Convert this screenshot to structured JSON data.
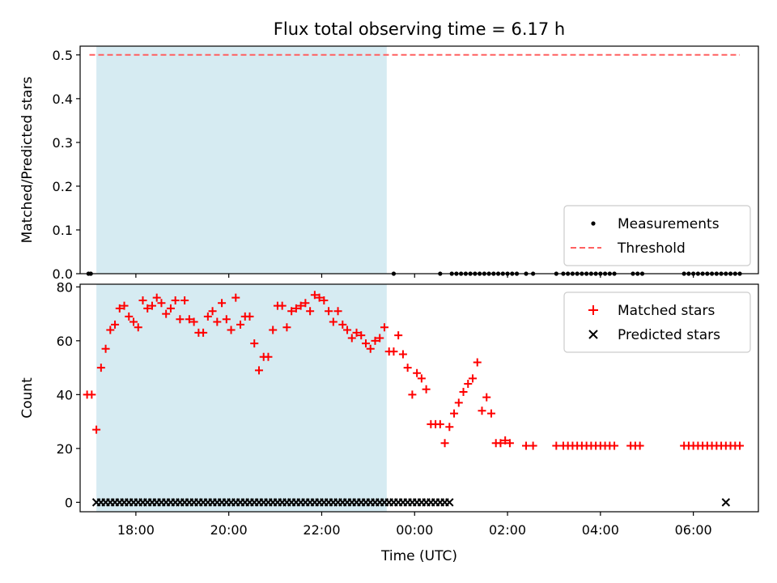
{
  "title": "Flux total observing time = 6.17 h",
  "colors": {
    "band": "#add8e6",
    "threshold": "#ff6060",
    "matched": "#ff0000",
    "predicted": "#000000",
    "measurement": "#000000"
  },
  "chart_data": [
    {
      "type": "scatter",
      "panel": "top",
      "ylabel": "Matched/Predicted stars",
      "xlabel": "",
      "xlim": [
        16.8,
        31.4
      ],
      "ylim": [
        0.0,
        0.52
      ],
      "yticks": [
        0.0,
        0.1,
        0.2,
        0.3,
        0.4,
        0.5
      ],
      "ytick_labels": [
        "0.0",
        "0.1",
        "0.2",
        "0.3",
        "0.4",
        "0.5"
      ],
      "shaded_interval": [
        17.15,
        23.4
      ],
      "threshold": {
        "label": "Threshold",
        "y": 0.5,
        "x": [
          17.0,
          31.0
        ]
      },
      "legend_position": "lower right",
      "series": [
        {
          "name": "Measurements",
          "marker": "dot",
          "x": [
            16.98,
            17.03,
            23.55,
            24.55,
            24.8,
            24.9,
            25.0,
            25.1,
            25.2,
            25.3,
            25.4,
            25.5,
            25.6,
            25.7,
            25.8,
            25.9,
            26.0,
            26.1,
            26.2,
            26.4,
            26.55,
            27.05,
            27.2,
            27.3,
            27.4,
            27.5,
            27.6,
            27.7,
            27.8,
            27.9,
            28.0,
            28.1,
            28.2,
            28.3,
            28.7,
            28.8,
            28.9,
            29.8,
            29.9,
            30.0,
            30.1,
            30.2,
            30.3,
            30.4,
            30.5,
            30.6,
            30.7,
            30.8,
            30.9,
            31.0
          ],
          "y": [
            0,
            0,
            0,
            0,
            0,
            0,
            0,
            0,
            0,
            0,
            0,
            0,
            0,
            0,
            0,
            0,
            0,
            0,
            0,
            0,
            0,
            0,
            0,
            0,
            0,
            0,
            0,
            0,
            0,
            0,
            0,
            0,
            0,
            0,
            0,
            0,
            0,
            0,
            0,
            0,
            0,
            0,
            0,
            0,
            0,
            0,
            0,
            0,
            0,
            0
          ]
        }
      ]
    },
    {
      "type": "scatter",
      "panel": "bottom",
      "ylabel": "Count",
      "xlabel": "Time (UTC)",
      "xlim": [
        16.8,
        31.4
      ],
      "ylim": [
        -3.5,
        81
      ],
      "xticks": [
        18,
        20,
        22,
        24,
        26,
        28,
        30
      ],
      "xtick_labels": [
        "18:00",
        "20:00",
        "22:00",
        "00:00",
        "02:00",
        "04:00",
        "06:00"
      ],
      "yticks": [
        0,
        20,
        40,
        60,
        80
      ],
      "ytick_labels": [
        "0",
        "20",
        "40",
        "60",
        "80"
      ],
      "shaded_interval": [
        17.15,
        23.4
      ],
      "legend_position": "upper right",
      "series": [
        {
          "name": "Matched stars",
          "marker": "plus",
          "x": [
            16.95,
            17.05,
            17.15,
            17.25,
            17.35,
            17.45,
            17.55,
            17.65,
            17.75,
            17.85,
            17.95,
            18.05,
            18.15,
            18.25,
            18.35,
            18.45,
            18.55,
            18.65,
            18.75,
            18.85,
            18.95,
            19.05,
            19.15,
            19.25,
            19.35,
            19.45,
            19.55,
            19.65,
            19.75,
            19.85,
            19.95,
            20.05,
            20.15,
            20.25,
            20.35,
            20.45,
            20.55,
            20.65,
            20.75,
            20.85,
            20.95,
            21.05,
            21.15,
            21.25,
            21.35,
            21.45,
            21.55,
            21.65,
            21.75,
            21.85,
            21.95,
            22.05,
            22.15,
            22.25,
            22.35,
            22.45,
            22.55,
            22.65,
            22.75,
            22.85,
            22.95,
            23.05,
            23.15,
            23.25,
            23.35,
            23.45,
            23.55,
            23.65,
            23.75,
            23.85,
            23.95,
            24.05,
            24.15,
            24.25,
            24.35,
            24.45,
            24.55,
            24.65,
            24.75,
            24.85,
            24.95,
            25.05,
            25.15,
            25.25,
            25.35,
            25.45,
            25.55,
            25.65,
            25.75,
            25.85,
            25.95,
            26.05,
            26.4,
            26.55,
            27.05,
            27.2,
            27.3,
            27.4,
            27.5,
            27.6,
            27.7,
            27.8,
            27.9,
            28.0,
            28.1,
            28.2,
            28.3,
            28.65,
            28.75,
            28.85,
            29.8,
            29.9,
            30.0,
            30.1,
            30.2,
            30.3,
            30.4,
            30.5,
            30.6,
            30.7,
            30.8,
            30.9,
            31.0
          ],
          "y": [
            40,
            40,
            27,
            50,
            57,
            64,
            66,
            72,
            73,
            69,
            67,
            65,
            75,
            72,
            73,
            76,
            74,
            70,
            72,
            75,
            68,
            75,
            68,
            67,
            63,
            63,
            69,
            71,
            67,
            74,
            68,
            64,
            76,
            66,
            69,
            69,
            59,
            49,
            54,
            54,
            64,
            73,
            73,
            65,
            71,
            72,
            73,
            74,
            71,
            77,
            76,
            75,
            71,
            67,
            71,
            66,
            64,
            61,
            63,
            62,
            59,
            57,
            60,
            61,
            65,
            56,
            56,
            62,
            55,
            50,
            40,
            48,
            46,
            42,
            29,
            29,
            29,
            22,
            28,
            33,
            37,
            41,
            44,
            46,
            52,
            34,
            39,
            33,
            22,
            22,
            23,
            22,
            21,
            21,
            21,
            21,
            21,
            21,
            21,
            21,
            21,
            21,
            21,
            21,
            21,
            21,
            21,
            21,
            21,
            21,
            21,
            21,
            21,
            21,
            21,
            21,
            21,
            21,
            21,
            21,
            21,
            21,
            21
          ]
        },
        {
          "name": "Predicted stars",
          "marker": "x",
          "x": [
            17.15,
            17.25,
            17.35,
            17.45,
            17.55,
            17.65,
            17.75,
            17.85,
            17.95,
            18.05,
            18.15,
            18.25,
            18.35,
            18.45,
            18.55,
            18.65,
            18.75,
            18.85,
            18.95,
            19.05,
            19.15,
            19.25,
            19.35,
            19.45,
            19.55,
            19.65,
            19.75,
            19.85,
            19.95,
            20.05,
            20.15,
            20.25,
            20.35,
            20.45,
            20.55,
            20.65,
            20.75,
            20.85,
            20.95,
            21.05,
            21.15,
            21.25,
            21.35,
            21.45,
            21.55,
            21.65,
            21.75,
            21.85,
            21.95,
            22.05,
            22.15,
            22.25,
            22.35,
            22.45,
            22.55,
            22.65,
            22.75,
            22.85,
            22.95,
            23.05,
            23.15,
            23.25,
            23.35,
            23.45,
            23.55,
            23.65,
            23.75,
            23.85,
            23.95,
            24.05,
            24.15,
            24.25,
            24.35,
            24.45,
            24.55,
            24.65,
            24.75,
            30.7
          ],
          "y": [
            0,
            0,
            0,
            0,
            0,
            0,
            0,
            0,
            0,
            0,
            0,
            0,
            0,
            0,
            0,
            0,
            0,
            0,
            0,
            0,
            0,
            0,
            0,
            0,
            0,
            0,
            0,
            0,
            0,
            0,
            0,
            0,
            0,
            0,
            0,
            0,
            0,
            0,
            0,
            0,
            0,
            0,
            0,
            0,
            0,
            0,
            0,
            0,
            0,
            0,
            0,
            0,
            0,
            0,
            0,
            0,
            0,
            0,
            0,
            0,
            0,
            0,
            0,
            0,
            0,
            0,
            0,
            0,
            0,
            0,
            0,
            0,
            0,
            0,
            0,
            0,
            0,
            0
          ]
        }
      ]
    }
  ]
}
